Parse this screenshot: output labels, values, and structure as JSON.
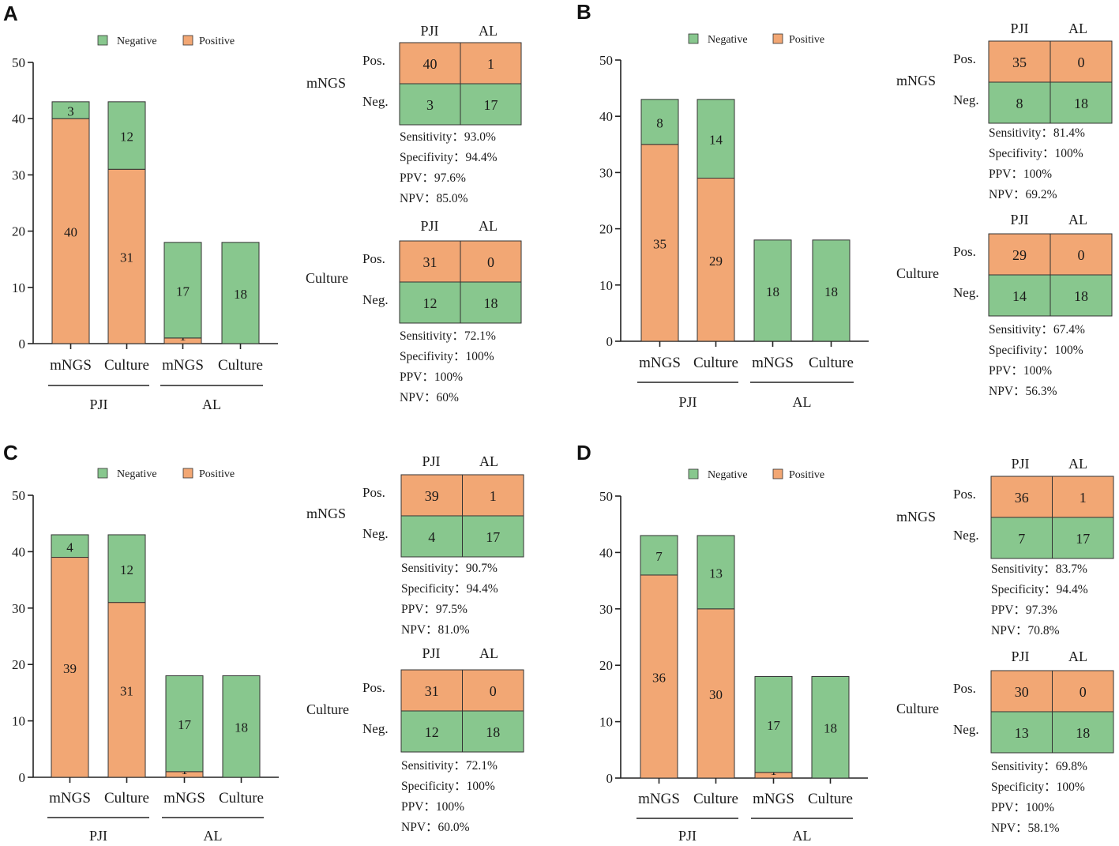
{
  "colors": {
    "negative": "#88c78e",
    "positive": "#f2a774",
    "axis": "#222222"
  },
  "legend": {
    "negative": "Negative",
    "positive": "Positive"
  },
  "chart_data": [
    {
      "panel": "A",
      "type": "bar",
      "stacked": true,
      "categories": [
        "mNGS",
        "Culture",
        "mNGS",
        "Culture"
      ],
      "groups": [
        {
          "label": "PJI",
          "members": [
            0,
            1
          ]
        },
        {
          "label": "AL",
          "members": [
            2,
            3
          ]
        }
      ],
      "series": [
        {
          "name": "Positive",
          "values": [
            40,
            31,
            1,
            0
          ]
        },
        {
          "name": "Negative",
          "values": [
            3,
            12,
            17,
            18
          ]
        }
      ],
      "ylim": [
        0,
        50
      ],
      "yticks": [
        "0",
        "10",
        "20",
        "30",
        "40",
        "50"
      ],
      "tables": [
        {
          "name": "mNGS",
          "cols": [
            "PJI",
            "AL"
          ],
          "rows": [
            "Pos.",
            "Neg."
          ],
          "cells": [
            [
              "40",
              "1"
            ],
            [
              "3",
              "17"
            ]
          ],
          "stats": [
            "Sensitivity：93.0%",
            "Specifivity：94.4%",
            "PPV：97.6%",
            "NPV：85.0%"
          ]
        },
        {
          "name": "Culture",
          "cols": [
            "PJI",
            "AL"
          ],
          "rows": [
            "Pos.",
            "Neg."
          ],
          "cells": [
            [
              "31",
              "0"
            ],
            [
              "12",
              "18"
            ]
          ],
          "stats": [
            "Sensitivity：72.1%",
            "Specifivity：100%",
            "PPV：100%",
            "NPV：60%"
          ]
        }
      ]
    },
    {
      "panel": "B",
      "type": "bar",
      "stacked": true,
      "categories": [
        "mNGS",
        "Culture",
        "mNGS",
        "Culture"
      ],
      "groups": [
        {
          "label": "PJI",
          "members": [
            0,
            1
          ]
        },
        {
          "label": "AL",
          "members": [
            2,
            3
          ]
        }
      ],
      "series": [
        {
          "name": "Positive",
          "values": [
            35,
            29,
            0,
            0
          ]
        },
        {
          "name": "Negative",
          "values": [
            8,
            14,
            18,
            18
          ]
        }
      ],
      "ylim": [
        0,
        50
      ],
      "yticks": [
        "0",
        "10",
        "20",
        "30",
        "40",
        "50"
      ],
      "tables": [
        {
          "name": "mNGS",
          "cols": [
            "PJI",
            "AL"
          ],
          "rows": [
            "Pos.",
            "Neg."
          ],
          "cells": [
            [
              "35",
              "0"
            ],
            [
              "8",
              "18"
            ]
          ],
          "stats": [
            "Sensitivity：81.4%",
            "Specifivity：100%",
            "PPV：100%",
            "NPV：69.2%"
          ]
        },
        {
          "name": "Culture",
          "cols": [
            "PJI",
            "AL"
          ],
          "rows": [
            "Pos.",
            "Neg."
          ],
          "cells": [
            [
              "29",
              "0"
            ],
            [
              "14",
              "18"
            ]
          ],
          "stats": [
            "Sensitivity：67.4%",
            "Specifivity：100%",
            "PPV：100%",
            "NPV：56.3%"
          ]
        }
      ]
    },
    {
      "panel": "C",
      "type": "bar",
      "stacked": true,
      "categories": [
        "mNGS",
        "Culture",
        "mNGS",
        "Culture"
      ],
      "groups": [
        {
          "label": "PJI",
          "members": [
            0,
            1
          ]
        },
        {
          "label": "AL",
          "members": [
            2,
            3
          ]
        }
      ],
      "series": [
        {
          "name": "Positive",
          "values": [
            39,
            31,
            1,
            0
          ]
        },
        {
          "name": "Negative",
          "values": [
            4,
            12,
            17,
            18
          ]
        }
      ],
      "ylim": [
        0,
        50
      ],
      "yticks": [
        "0",
        "10",
        "20",
        "30",
        "40",
        "50"
      ],
      "tables": [
        {
          "name": "mNGS",
          "cols": [
            "PJI",
            "AL"
          ],
          "rows": [
            "Pos.",
            "Neg."
          ],
          "cells": [
            [
              "39",
              "1"
            ],
            [
              "4",
              "17"
            ]
          ],
          "stats": [
            "Sensitivity：90.7%",
            "Specificity：94.4%",
            "PPV：97.5%",
            "NPV：81.0%"
          ]
        },
        {
          "name": "Culture",
          "cols": [
            "PJI",
            "AL"
          ],
          "rows": [
            "Pos.",
            "Neg."
          ],
          "cells": [
            [
              "31",
              "0"
            ],
            [
              "12",
              "18"
            ]
          ],
          "stats": [
            "Sensitivity：72.1%",
            "Specificity：100%",
            "PPV：100%",
            "NPV：60.0%"
          ]
        }
      ]
    },
    {
      "panel": "D",
      "type": "bar",
      "stacked": true,
      "categories": [
        "mNGS",
        "Culture",
        "mNGS",
        "Culture"
      ],
      "groups": [
        {
          "label": "PJI",
          "members": [
            0,
            1
          ]
        },
        {
          "label": "AL",
          "members": [
            2,
            3
          ]
        }
      ],
      "series": [
        {
          "name": "Positive",
          "values": [
            36,
            30,
            1,
            0
          ]
        },
        {
          "name": "Negative",
          "values": [
            7,
            13,
            17,
            18
          ]
        }
      ],
      "ylim": [
        0,
        50
      ],
      "yticks": [
        "0",
        "10",
        "20",
        "30",
        "40",
        "50"
      ],
      "tables": [
        {
          "name": "mNGS",
          "cols": [
            "PJI",
            "AL"
          ],
          "rows": [
            "Pos.",
            "Neg."
          ],
          "cells": [
            [
              "36",
              "1"
            ],
            [
              "7",
              "17"
            ]
          ],
          "stats": [
            "Sensitivity：83.7%",
            "Specificity：94.4%",
            "PPV：97.3%",
            "NPV：70.8%"
          ]
        },
        {
          "name": "Culture",
          "cols": [
            "PJI",
            "AL"
          ],
          "rows": [
            "Pos.",
            "Neg."
          ],
          "cells": [
            [
              "30",
              "0"
            ],
            [
              "13",
              "18"
            ]
          ],
          "stats": [
            "Sensitivity：69.8%",
            "Specificity：100%",
            "PPV：100%",
            "NPV：58.1%"
          ]
        }
      ]
    }
  ]
}
